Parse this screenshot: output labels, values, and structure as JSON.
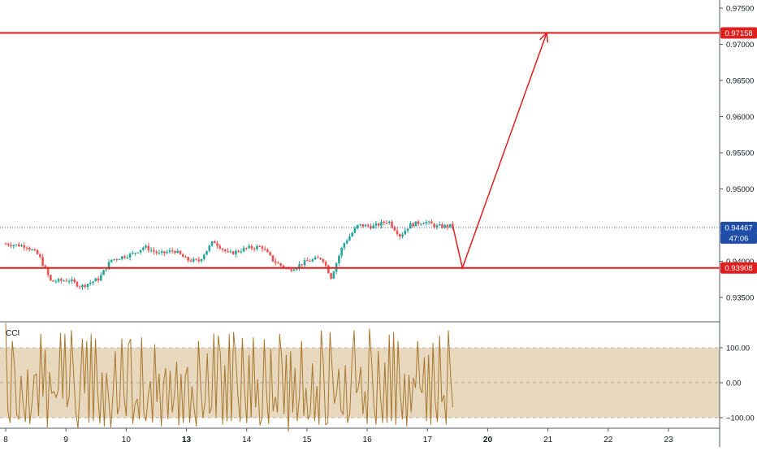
{
  "chart_data": [
    {
      "type": "candlestick",
      "title": "",
      "y_axis": {
        "ticks": [
          "0.97500",
          "0.97000",
          "0.96500",
          "0.96000",
          "0.95500",
          "0.95000",
          "0.94000",
          "0.93500"
        ],
        "tick_values": [
          0.975,
          0.97,
          0.965,
          0.96,
          0.955,
          0.95,
          0.94,
          0.935
        ],
        "ylim": [
          0.932,
          0.976
        ]
      },
      "x_axis": {
        "ticks": [
          {
            "label": "8",
            "pos": 0.0,
            "bold": false
          },
          {
            "label": "9",
            "pos": 1.0,
            "bold": false
          },
          {
            "label": "10",
            "pos": 2.0,
            "bold": false
          },
          {
            "label": "13",
            "pos": 3.0,
            "bold": true
          },
          {
            "label": "14",
            "pos": 4.0,
            "bold": false
          },
          {
            "label": "15",
            "pos": 5.0,
            "bold": false
          },
          {
            "label": "16",
            "pos": 6.0,
            "bold": false
          },
          {
            "label": "17",
            "pos": 7.0,
            "bold": false
          },
          {
            "label": "20",
            "pos": 8.0,
            "bold": true
          },
          {
            "label": "21",
            "pos": 9.0,
            "bold": false
          },
          {
            "label": "22",
            "pos": 10.0,
            "bold": false
          },
          {
            "label": "23",
            "pos": 11.0,
            "bold": false
          }
        ],
        "xlim": [
          -0.05,
          11.95
        ]
      },
      "levels": [
        {
          "value": 0.97158,
          "label": "0.97158",
          "color": "#e01e1e"
        },
        {
          "value": 0.93908,
          "label": "0.93908",
          "color": "#e01e1e"
        }
      ],
      "current_price": {
        "value": 0.94467,
        "label": "0.94467",
        "countdown": "47:06",
        "color": "#1e4ea8"
      },
      "projection_path": [
        [
          7.42,
          0.9449
        ],
        [
          7.58,
          0.93908
        ],
        [
          8.98,
          0.97158
        ]
      ],
      "up_color": "#26a69a",
      "down_color": "#ef5350",
      "line_color": "#e01e1e",
      "grid": false
    },
    {
      "type": "line",
      "title": "CCI",
      "series": [
        {
          "values": [
            171,
            -80,
            -115,
            120,
            51,
            -90,
            -105,
            20,
            -65,
            -112,
            38,
            -118,
            -60,
            21,
            25,
            -95,
            140,
            -40,
            95,
            -128,
            31,
            -30,
            -25,
            -42,
            -20,
            143,
            -45,
            140,
            -70,
            -38,
            150,
            25,
            -82,
            -130,
            -10,
            126,
            -30,
            120,
            -114,
            140,
            -110,
            126,
            -30,
            -116,
            30,
            -125,
            28,
            -45,
            -128,
            -30,
            90,
            -90,
            -65,
            126,
            -40,
            -95,
            110,
            125,
            -118,
            -62,
            -46,
            -105,
            130,
            -84,
            -110,
            -40,
            5,
            -114,
            110,
            -55,
            26,
            -125,
            -2,
            42,
            -105,
            35,
            -85,
            -35,
            60,
            -122,
            25,
            -115,
            20,
            45,
            -115,
            -10,
            -73,
            -125,
            120,
            -10,
            -100,
            -55,
            84,
            -88,
            -70,
            141,
            -98,
            135,
            80,
            -120,
            50,
            -110,
            140,
            -110,
            145,
            72,
            -40,
            -112,
            128,
            -20,
            -116,
            80,
            -100,
            130,
            -70,
            10,
            -122,
            -100,
            125,
            -30,
            -118,
            98,
            -82,
            -40,
            -85,
            140,
            65,
            -90,
            80,
            -140,
            90,
            -85,
            42,
            -110,
            -40,
            120,
            -95,
            -15,
            -105,
            -88,
            55,
            -110,
            -10,
            -120,
            150,
            50,
            -120,
            -115,
            145,
            40,
            -60,
            -30,
            40,
            -80,
            -90,
            50,
            -115,
            -88,
            58,
            150,
            -30,
            -12,
            45,
            -90,
            -25,
            -118,
            155,
            60,
            -65,
            -120,
            90,
            -40,
            -115,
            58,
            -115,
            138,
            -110,
            145,
            -120,
            120,
            -28,
            -105,
            26,
            -125,
            23,
            -85,
            15,
            -15,
            120,
            -14,
            -30,
            73,
            -110,
            80,
            -120,
            114,
            -55,
            -112,
            135,
            -55,
            -35,
            -120,
            150,
            20,
            -70
          ]
        }
      ],
      "y_axis": {
        "ticks": [
          "100.00",
          "0.00",
          "−100.00"
        ],
        "tick_values": [
          100,
          0,
          -100
        ],
        "ylim": [
          -178,
          180
        ]
      },
      "band": {
        "upper": 100,
        "lower": -100,
        "fill": "#dfcba8"
      },
      "line_color": "#a8782e"
    }
  ],
  "countdown_label": "47:06"
}
